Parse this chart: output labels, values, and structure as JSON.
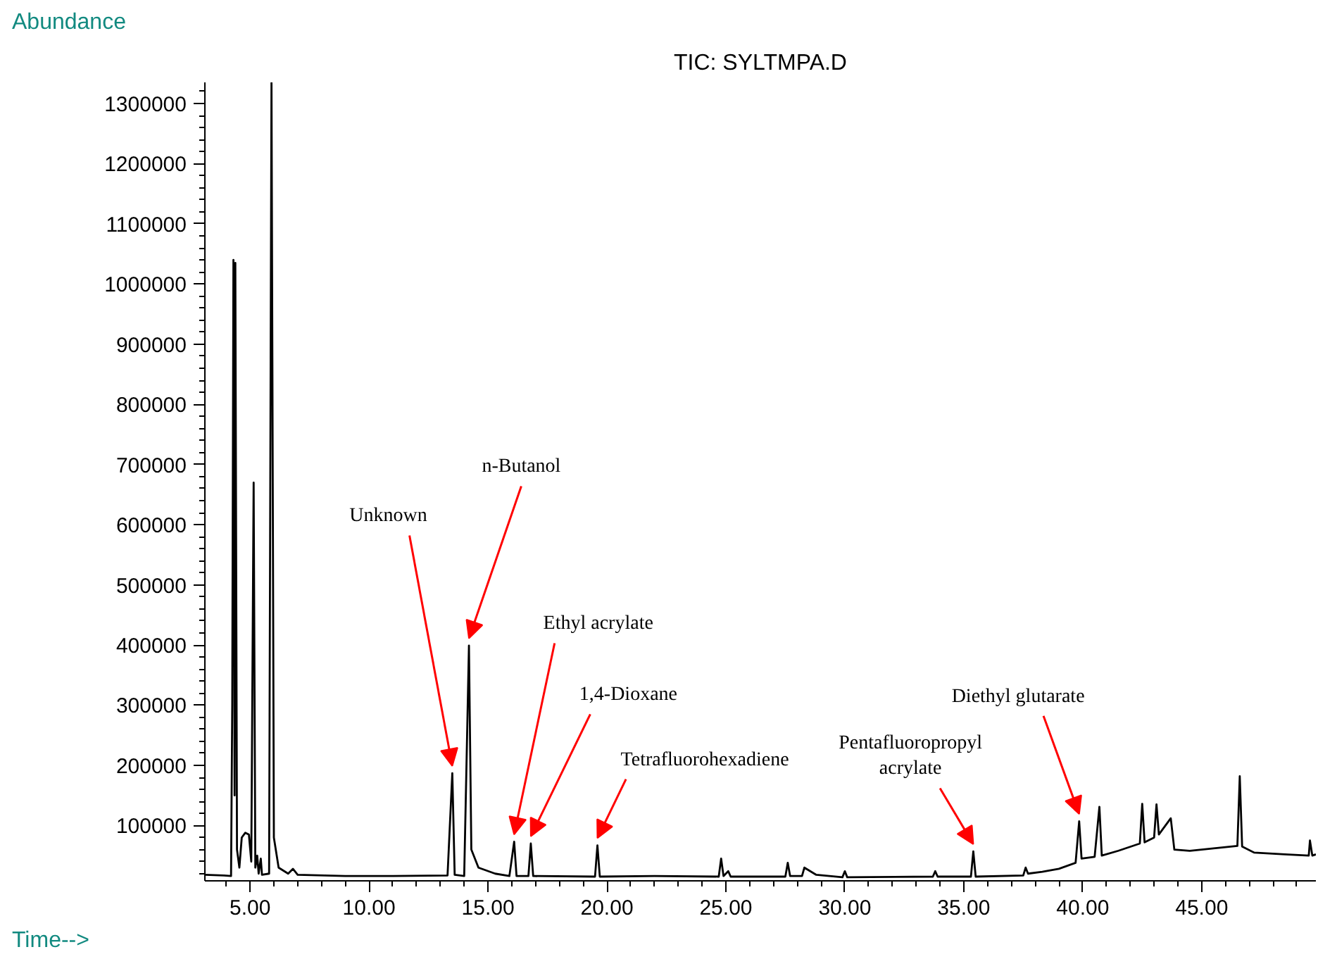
{
  "chart_data": {
    "type": "line",
    "title": "TIC: SYLTMPA.D",
    "xlabel": "Time-->",
    "ylabel": "Abundance",
    "color": "#000000",
    "x": [
      3.1,
      3.9,
      4.2,
      4.25,
      4.3,
      4.35,
      4.38,
      4.45,
      4.55,
      4.65,
      4.8,
      4.95,
      5.05,
      5.15,
      5.22,
      5.3,
      5.36,
      5.45,
      5.5,
      5.8,
      5.9,
      6.0,
      6.2,
      6.6,
      6.8,
      7.0,
      9.0,
      11.0,
      13.3,
      13.5,
      13.6,
      14.0,
      14.2,
      14.3,
      14.6,
      15.3,
      15.9,
      16.1,
      16.2,
      16.7,
      16.8,
      16.9,
      19.5,
      19.6,
      19.7,
      22.0,
      24.7,
      24.8,
      24.9,
      25.1,
      25.2,
      27.5,
      27.6,
      27.7,
      28.2,
      28.3,
      28.8,
      29.9,
      30.0,
      30.1,
      33.7,
      33.8,
      33.9,
      35.3,
      35.4,
      35.5,
      37.5,
      37.6,
      37.7,
      38.3,
      39.0,
      39.7,
      39.85,
      39.95,
      40.5,
      40.7,
      40.8,
      41.5,
      42.4,
      42.5,
      42.6,
      43.0,
      43.1,
      43.2,
      43.7,
      43.85,
      44.5,
      45.5,
      46.5,
      46.6,
      46.7,
      47.2,
      48.5,
      49.5,
      49.55,
      49.65,
      49.8
    ],
    "values": [
      18000,
      17000,
      16000,
      300000,
      1040000,
      150000,
      1035000,
      60000,
      30000,
      80000,
      88000,
      85000,
      40000,
      670000,
      30000,
      50000,
      20000,
      45000,
      18000,
      20000,
      1335000,
      80000,
      30000,
      20000,
      28000,
      18000,
      16000,
      16000,
      17000,
      187000,
      18000,
      16000,
      399000,
      60000,
      30000,
      20000,
      16000,
      73000,
      16000,
      16000,
      70000,
      16000,
      15000,
      67000,
      15000,
      16000,
      15000,
      45000,
      16000,
      24000,
      15000,
      15000,
      38000,
      16000,
      16000,
      30000,
      18000,
      14000,
      24000,
      14000,
      15000,
      24000,
      15000,
      15000,
      57000,
      15000,
      17000,
      30000,
      20000,
      23000,
      28000,
      38000,
      107000,
      45000,
      48000,
      131000,
      50000,
      58000,
      70000,
      136000,
      72000,
      80000,
      135000,
      85000,
      112000,
      60000,
      58000,
      62000,
      66000,
      182000,
      65000,
      55000,
      52000,
      50000,
      75000,
      50000,
      52000
    ],
    "xlim": [
      3.1,
      49.8
    ],
    "ylim": [
      8000,
      1335000
    ],
    "xticks": [
      {
        "value": 5,
        "label": "5.00"
      },
      {
        "value": 10,
        "label": "10.00"
      },
      {
        "value": 15,
        "label": "15.00"
      },
      {
        "value": 20,
        "label": "20.00"
      },
      {
        "value": 25,
        "label": "25.00"
      },
      {
        "value": 30,
        "label": "30.00"
      },
      {
        "value": 35,
        "label": "35.00"
      },
      {
        "value": 40,
        "label": "40.00"
      },
      {
        "value": 45,
        "label": "45.00"
      }
    ],
    "yticks": [
      100000,
      200000,
      300000,
      400000,
      500000,
      600000,
      700000,
      800000,
      900000,
      1000000,
      1100000,
      1200000,
      1300000
    ],
    "grid": false,
    "annotations": [
      {
        "text": "Unknown",
        "x": 13.5,
        "y": 187000
      },
      {
        "text": "n-Butanol",
        "x": 14.2,
        "y": 399000
      },
      {
        "text": "Ethyl acrylate",
        "x": 16.1,
        "y": 73000
      },
      {
        "text": "1,4-Dioxane",
        "x": 16.8,
        "y": 70000
      },
      {
        "text": "Tetrafluorohexadiene",
        "x": 19.6,
        "y": 67000
      },
      {
        "text": "Pentafluoropropyl\nacrylate",
        "x": 35.4,
        "y": 57000
      },
      {
        "text": "Diethyl glutarate",
        "x": 39.85,
        "y": 107000
      }
    ]
  }
}
